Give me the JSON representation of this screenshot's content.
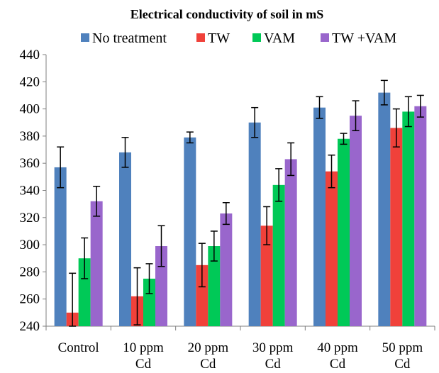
{
  "chart_data": {
    "type": "bar",
    "title": "Electrical conductivity of soil in mS",
    "xlabel": "",
    "ylabel": "",
    "categories": [
      [
        "Control"
      ],
      [
        "10 ppm",
        "Cd"
      ],
      [
        "20 ppm",
        "Cd"
      ],
      [
        "30 ppm",
        "Cd"
      ],
      [
        "40 ppm",
        "Cd"
      ],
      [
        "50 ppm",
        "Cd"
      ]
    ],
    "ylim": [
      240,
      440
    ],
    "yticks": [
      240,
      260,
      280,
      300,
      320,
      340,
      360,
      380,
      400,
      420,
      440
    ],
    "grid": false,
    "legend_position": "top",
    "series": [
      {
        "name": "No treatment",
        "color": "#4F81BD",
        "values": [
          357,
          368,
          379,
          390,
          401,
          412
        ],
        "errors": [
          15,
          11,
          4,
          11,
          8,
          9
        ]
      },
      {
        "name": "TW",
        "color": "#F0413A",
        "values": [
          250,
          262,
          285,
          314,
          354,
          386
        ],
        "errors": [
          29,
          21,
          16,
          14,
          12,
          14
        ]
      },
      {
        "name": "VAM",
        "color": "#00C957",
        "values": [
          290,
          275,
          299,
          344,
          378,
          398
        ],
        "errors": [
          15,
          11,
          11,
          12,
          4,
          11
        ]
      },
      {
        "name": "TW +VAM",
        "color": "#9966CC",
        "values": [
          332,
          299,
          323,
          363,
          395,
          402
        ],
        "errors": [
          11,
          15,
          8,
          12,
          11,
          8
        ]
      }
    ]
  }
}
